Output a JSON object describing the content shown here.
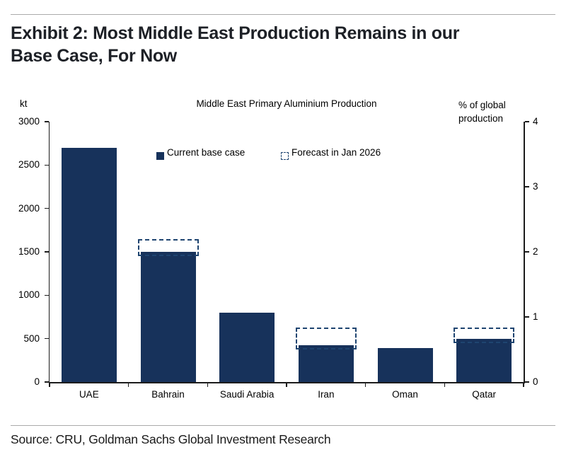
{
  "header": {
    "title": "Exhibit 2: Most Middle East Production Remains in our Base Case, For Now",
    "title_lines": [
      "Exhibit 2: Most Middle East Production Remains in our",
      "Base Case, For Now"
    ]
  },
  "chart_data": {
    "type": "bar",
    "title": "Middle East Primary Aluminium Production",
    "left_axis": {
      "label": "kt",
      "min": 0,
      "max": 3000,
      "ticks": [
        0,
        500,
        1000,
        1500,
        2000,
        2500,
        3000
      ]
    },
    "right_axis": {
      "label": "% of global production",
      "min": 0,
      "max": 4,
      "ticks": [
        0,
        1,
        2,
        3,
        4
      ]
    },
    "categories": [
      "UAE",
      "Bahrain",
      "Saudi Arabia",
      "Iran",
      "Oman",
      "Qatar"
    ],
    "series": [
      {
        "name": "Current base case",
        "style": "solid-fill",
        "values_kt": [
          2700,
          1500,
          800,
          420,
          395,
          500
        ]
      },
      {
        "name": "Forecast in Jan 2026",
        "style": "dashed-outline",
        "values_kt": [
          null,
          1650,
          null,
          630,
          null,
          630
        ]
      }
    ],
    "legend_position": "top-center",
    "grid": false,
    "colors": {
      "bar_fill": "#17325B",
      "forecast_outline": "#1E4470",
      "axis": "#1c1c1c",
      "text": "#000000"
    }
  },
  "footer": {
    "source": "Source: CRU, Goldman Sachs Global Investment Research"
  }
}
